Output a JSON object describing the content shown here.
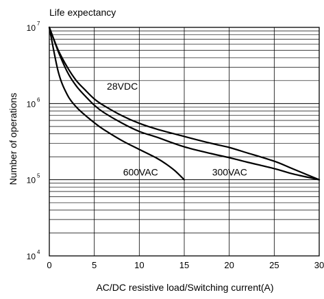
{
  "chart_data": {
    "type": "line",
    "title": "Life expectancy",
    "xlabel": "AC/DC resistive load/Switching current(A)",
    "ylabel": "Number of operations",
    "x_range": [
      0,
      30
    ],
    "y_range": [
      10000,
      10000000
    ],
    "y_scale": "log",
    "grid": true,
    "x_ticks": [
      0,
      5,
      10,
      15,
      20,
      25,
      30
    ],
    "y_ticks": [
      {
        "value": 10000,
        "base": "10",
        "exp": "4"
      },
      {
        "value": 100000,
        "base": "10",
        "exp": "5"
      },
      {
        "value": 1000000,
        "base": "10",
        "exp": "6"
      },
      {
        "value": 10000000,
        "base": "10",
        "exp": "7"
      }
    ],
    "series": [
      {
        "name": "28VDC",
        "x": [
          0,
          1,
          2,
          3,
          4,
          5,
          6,
          8,
          10,
          12,
          15,
          18,
          20,
          22,
          25,
          27,
          30
        ],
        "y": [
          10000000,
          5000000,
          3000000,
          2000000,
          1500000,
          1150000,
          950000,
          700000,
          550000,
          460000,
          370000,
          300000,
          265000,
          225000,
          175000,
          140000,
          100000
        ]
      },
      {
        "name": "300VAC",
        "x": [
          0,
          1,
          2,
          3,
          4,
          5,
          6,
          8,
          10,
          12,
          15,
          18,
          20,
          22,
          25,
          27,
          30
        ],
        "y": [
          10000000,
          4800000,
          2600000,
          1700000,
          1250000,
          950000,
          770000,
          560000,
          430000,
          360000,
          270000,
          220000,
          195000,
          170000,
          140000,
          120000,
          100000
        ]
      },
      {
        "name": "600VAC",
        "x": [
          0,
          1,
          2,
          3,
          4,
          5,
          6,
          8,
          10,
          12,
          13,
          14,
          15
        ],
        "y": [
          10000000,
          2600000,
          1300000,
          900000,
          700000,
          560000,
          460000,
          330000,
          250000,
          190000,
          160000,
          130000,
          100000
        ]
      }
    ],
    "annotations": [
      {
        "text": "28VDC",
        "x": 6.4,
        "y": 1350000
      },
      {
        "text": "300VAC",
        "x": 18.1,
        "y": 100000
      },
      {
        "text": "600VAC",
        "x": 8.2,
        "y": 100000
      }
    ]
  }
}
